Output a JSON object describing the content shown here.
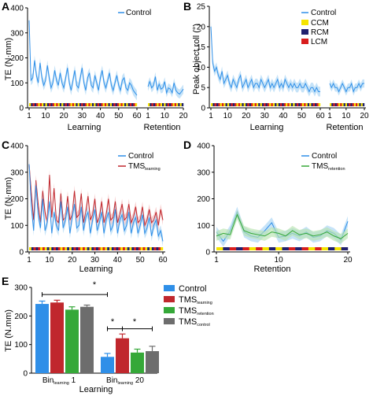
{
  "panels": {
    "A": {
      "label": "A"
    },
    "B": {
      "label": "B"
    },
    "C": {
      "label": "C"
    },
    "D": {
      "label": "D"
    },
    "E": {
      "label": "E"
    }
  },
  "colors": {
    "control": "#2f8fe8",
    "control_band": "#a8d4f5",
    "tms_learning": "#c0272d",
    "tms_learning_band": "#f3b6b6",
    "tms_retention": "#35a838",
    "tms_retention_band": "#b8e3b0",
    "tms_control": "#6d6d6d",
    "ccm": "#f5e400",
    "rcm": "#20206e",
    "lcm": "#d81e1e"
  },
  "condition_legend": [
    {
      "name": "CCM",
      "color": "#f5e400"
    },
    {
      "name": "RCM",
      "color": "#20206e"
    },
    {
      "name": "LCM",
      "color": "#d81e1e"
    }
  ],
  "chart_data": [
    {
      "id": "A",
      "type": "line",
      "ylabel": "TE (N·mm)",
      "xlabel_left": "Learning",
      "xlabel_right": "Retention",
      "ylim": [
        0,
        400
      ],
      "yticks": [
        "0",
        "100",
        "200",
        "300",
        "400"
      ],
      "xticks_left": [
        "1",
        "10",
        "20",
        "30",
        "40",
        "50",
        "60"
      ],
      "xticks_right": [
        "1",
        "10",
        "20"
      ],
      "legend": [
        "Control"
      ],
      "series": [
        {
          "name": "Control",
          "segment": "learning",
          "x_range": [
            1,
            60
          ],
          "values": [
            350,
            110,
            120,
            190,
            130,
            100,
            180,
            120,
            90,
            110,
            170,
            120,
            80,
            100,
            150,
            110,
            90,
            140,
            100,
            80,
            120,
            160,
            100,
            70,
            110,
            150,
            90,
            80,
            120,
            160,
            100,
            70,
            120,
            140,
            90,
            80,
            130,
            100,
            70,
            120,
            150,
            100,
            80,
            110,
            140,
            90,
            70,
            100,
            130,
            90,
            70,
            110,
            120,
            80,
            70,
            100,
            90,
            70,
            60,
            50
          ]
        },
        {
          "name": "Control",
          "segment": "retention",
          "x_range": [
            1,
            20
          ],
          "values": [
            85,
            105,
            80,
            90,
            125,
            70,
            95,
            75,
            80,
            105,
            60,
            80,
            75,
            60,
            100,
            70,
            60,
            55,
            65,
            75
          ]
        }
      ]
    },
    {
      "id": "B",
      "type": "line",
      "ylabel": "Peak object roll (°)",
      "xlabel_left": "Learning",
      "xlabel_right": "Retention",
      "ylim": [
        0,
        25
      ],
      "yticks": [
        "0",
        "5",
        "10",
        "15",
        "20",
        "25"
      ],
      "xticks_left": [
        "1",
        "10",
        "20",
        "30",
        "40",
        "50",
        "60"
      ],
      "xticks_right": [
        "1",
        "10",
        "20"
      ],
      "legend": [
        "Control",
        "CCM",
        "RCM",
        "LCM"
      ],
      "series": [
        {
          "name": "Control",
          "segment": "learning",
          "x_range": [
            1,
            60
          ],
          "values": [
            20,
            11,
            9,
            10,
            8,
            7,
            9,
            6,
            7,
            8,
            6,
            5,
            7,
            6,
            5,
            7,
            8,
            5,
            6,
            7,
            5,
            6,
            7,
            5,
            6,
            6,
            5,
            7,
            6,
            5,
            6,
            7,
            5,
            6,
            5,
            6,
            7,
            5,
            6,
            5,
            7,
            6,
            5,
            6,
            5,
            6,
            5,
            5,
            6,
            5,
            5,
            6,
            5,
            4,
            5,
            5,
            4,
            5,
            4,
            4
          ]
        },
        {
          "name": "Control",
          "segment": "retention",
          "x_range": [
            1,
            20
          ],
          "values": [
            6,
            5,
            6,
            5,
            5,
            4,
            5,
            6,
            5,
            4,
            5,
            5,
            6,
            4,
            5,
            5,
            6,
            5,
            6,
            6
          ]
        }
      ]
    },
    {
      "id": "C",
      "type": "line",
      "ylabel": "TE (N·mm)",
      "xlabel": "Learning",
      "ylim": [
        0,
        400
      ],
      "yticks": [
        "0",
        "100",
        "200",
        "300",
        "400"
      ],
      "xticks": [
        "1",
        "10",
        "20",
        "30",
        "40",
        "50",
        "60"
      ],
      "series": [
        {
          "name": "Control",
          "values": [
            330,
            170,
            80,
            250,
            140,
            90,
            200,
            80,
            110,
            190,
            70,
            150,
            100,
            80,
            190,
            90,
            120,
            170,
            70,
            130,
            180,
            90,
            100,
            170,
            80,
            130,
            150,
            70,
            120,
            160,
            80,
            110,
            150,
            70,
            120,
            150,
            80,
            100,
            160,
            70,
            120,
            140,
            80,
            100,
            150,
            70,
            110,
            130,
            70,
            100,
            140,
            70,
            90,
            130,
            60,
            100,
            120,
            60,
            80,
            40
          ]
        },
        {
          "name": "TMS",
          "name_sub": "learning",
          "values": [
            330,
            220,
            120,
            270,
            180,
            110,
            230,
            150,
            110,
            290,
            130,
            240,
            120,
            110,
            220,
            120,
            130,
            210,
            120,
            140,
            230,
            130,
            140,
            220,
            110,
            150,
            210,
            120,
            140,
            200,
            110,
            130,
            190,
            110,
            140,
            200,
            120,
            130,
            190,
            110,
            140,
            180,
            120,
            130,
            180,
            110,
            130,
            170,
            110,
            120,
            170,
            100,
            120,
            160,
            110,
            120,
            150,
            100,
            160,
            120
          ]
        }
      ]
    },
    {
      "id": "D",
      "type": "line",
      "xlabel": "Retention",
      "ylim": [
        0,
        400
      ],
      "yticks": [
        "0",
        "100",
        "200",
        "300",
        "400"
      ],
      "xticks": [
        "1",
        "10",
        "20"
      ],
      "series": [
        {
          "name": "Control",
          "values": [
            75,
            40,
            80,
            150,
            75,
            60,
            55,
            80,
            110,
            55,
            60,
            70,
            60,
            75,
            55,
            60,
            80,
            70,
            45,
            115
          ]
        },
        {
          "name": "TMS",
          "name_sub": "retention",
          "values": [
            60,
            70,
            65,
            140,
            80,
            70,
            65,
            60,
            75,
            70,
            60,
            80,
            65,
            70,
            60,
            65,
            75,
            60,
            50,
            70
          ]
        }
      ]
    },
    {
      "id": "E",
      "type": "bar",
      "ylabel": "TE (N.mm)",
      "xlabel": "Learning",
      "ylim": [
        0,
        300
      ],
      "yticks": [
        "0",
        "100",
        "200",
        "300"
      ],
      "categories": [
        {
          "main": "Bin",
          "sub": "learning",
          "suffix": " 1"
        },
        {
          "main": "Bin",
          "sub": "learning",
          "suffix": " 20"
        }
      ],
      "series": [
        {
          "name": "Control",
          "values": [
            242,
            57
          ],
          "errors": [
            10,
            12
          ]
        },
        {
          "name": "TMS",
          "name_sub": "learning",
          "values": [
            247,
            122
          ],
          "errors": [
            8,
            15
          ]
        },
        {
          "name": "TMS",
          "name_sub": "retention",
          "values": [
            222,
            72
          ],
          "errors": [
            10,
            12
          ]
        },
        {
          "name": "TMS",
          "name_sub": "control",
          "values": [
            232,
            77
          ],
          "errors": [
            6,
            17
          ]
        }
      ],
      "annotations": [
        "*",
        "*",
        "*"
      ]
    }
  ]
}
